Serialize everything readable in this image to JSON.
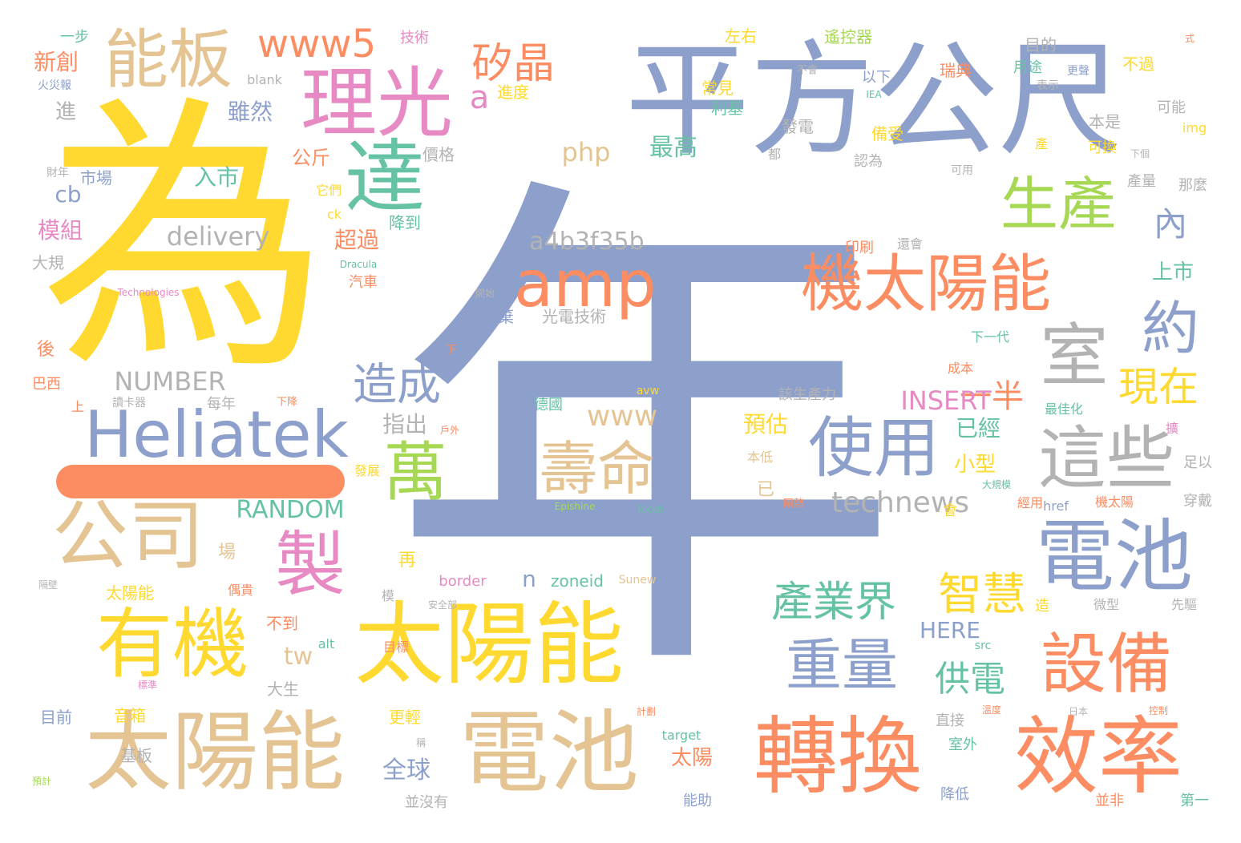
{
  "colors": {
    "blue": "#8DA0CB",
    "yellow": "#FFD92F",
    "orange": "#FC8D62",
    "pink": "#E78AC3",
    "green": "#A6D854",
    "teal": "#66C2A5",
    "tan": "#E5C494",
    "gray": "#B3B3B3"
  },
  "words": [
    {
      "text": "年",
      "color": "blue"
    },
    {
      "text": "為",
      "color": "yellow"
    },
    {
      "text": "平方公尺",
      "color": "blue"
    },
    {
      "text": "理光",
      "color": "pink"
    },
    {
      "text": "能板",
      "color": "tan"
    },
    {
      "text": "www5",
      "color": "orange"
    },
    {
      "text": "矽晶",
      "color": "orange"
    },
    {
      "text": "a",
      "color": "pink"
    },
    {
      "text": "達",
      "color": "teal"
    },
    {
      "text": "amp",
      "color": "orange"
    },
    {
      "text": "生產",
      "color": "green"
    },
    {
      "text": "內",
      "color": "blue"
    },
    {
      "text": "機太陽能",
      "color": "orange"
    },
    {
      "text": "室",
      "color": "gray"
    },
    {
      "text": "約",
      "color": "blue"
    },
    {
      "text": "Heliatek",
      "color": "blue"
    },
    {
      "text": "造成",
      "color": "blue"
    },
    {
      "text": "一半",
      "color": "orange"
    },
    {
      "text": "現在",
      "color": "yellow"
    },
    {
      "text": "壽命",
      "color": "tan"
    },
    {
      "text": "使用",
      "color": "blue"
    },
    {
      "text": "這些",
      "color": "gray"
    },
    {
      "text": "萬",
      "color": "green"
    },
    {
      "text": "公司",
      "color": "tan"
    },
    {
      "text": "製",
      "color": "pink"
    },
    {
      "text": "電池",
      "color": "blue"
    },
    {
      "text": "有機",
      "color": "yellow"
    },
    {
      "text": "太陽能",
      "color": "yellow"
    },
    {
      "text": "產業界",
      "color": "teal"
    },
    {
      "text": "智慧",
      "color": "yellow"
    },
    {
      "text": "重量",
      "color": "blue"
    },
    {
      "text": "設備",
      "color": "orange"
    },
    {
      "text": "太陽能",
      "color": "tan"
    },
    {
      "text": "電池",
      "color": "tan"
    },
    {
      "text": "轉換",
      "color": "orange"
    },
    {
      "text": "效率",
      "color": "orange"
    },
    {
      "text": "供電",
      "color": "teal"
    },
    {
      "text": "a4b3f35b",
      "color": "gray"
    },
    {
      "text": "delivery",
      "color": "gray"
    },
    {
      "text": "NUMBER",
      "color": "gray"
    },
    {
      "text": "technews",
      "color": "gray"
    },
    {
      "text": "RANDOM",
      "color": "teal"
    },
    {
      "text": "INSERT",
      "color": "pink"
    },
    {
      "text": "www",
      "color": "tan"
    },
    {
      "text": "php",
      "color": "tan"
    },
    {
      "text": "最高",
      "color": "teal"
    },
    {
      "text": "公斤",
      "color": "orange"
    },
    {
      "text": "入市",
      "color": "teal"
    },
    {
      "text": "雖然",
      "color": "blue"
    },
    {
      "text": "cb",
      "color": "blue"
    },
    {
      "text": "模組",
      "color": "pink"
    },
    {
      "text": "新創",
      "color": "orange"
    },
    {
      "text": "進",
      "color": "gray"
    },
    {
      "text": "已經",
      "color": "teal"
    },
    {
      "text": "預估",
      "color": "yellow"
    },
    {
      "text": "小型",
      "color": "yellow"
    },
    {
      "text": "指出",
      "color": "gray"
    },
    {
      "text": "超過",
      "color": "orange"
    },
    {
      "text": "上市",
      "color": "teal"
    },
    {
      "text": "全球",
      "color": "blue"
    },
    {
      "text": "太陽",
      "color": "orange"
    },
    {
      "text": "HERE",
      "color": "blue"
    },
    {
      "text": "tw",
      "color": "tan"
    },
    {
      "text": "n",
      "color": "blue"
    },
    {
      "text": "zoneid",
      "color": "teal"
    },
    {
      "text": "border",
      "color": "pink"
    },
    {
      "text": "大規",
      "color": "gray"
    },
    {
      "text": "市場",
      "color": "blue"
    },
    {
      "text": "價格",
      "color": "gray"
    },
    {
      "text": "目前",
      "color": "blue"
    },
    {
      "text": "音箱",
      "color": "yellow"
    },
    {
      "text": "基板",
      "color": "gray"
    },
    {
      "text": "更輕",
      "color": "yellow"
    },
    {
      "text": "大生",
      "color": "gray"
    },
    {
      "text": "不到",
      "color": "orange"
    },
    {
      "text": "太陽能",
      "color": "yellow"
    },
    {
      "text": "每年",
      "color": "gray"
    },
    {
      "text": "巴西",
      "color": "orange"
    },
    {
      "text": "後",
      "color": "orange"
    },
    {
      "text": "場",
      "color": "tan"
    },
    {
      "text": "再",
      "color": "yellow"
    },
    {
      "text": "降到",
      "color": "teal"
    },
    {
      "text": "汽車",
      "color": "orange"
    },
    {
      "text": "放棄",
      "color": "blue"
    },
    {
      "text": "光電技術",
      "color": "gray"
    },
    {
      "text": "該生產力",
      "color": "gray"
    },
    {
      "text": "德國",
      "color": "teal"
    },
    {
      "text": "一步",
      "color": "teal"
    },
    {
      "text": "技術",
      "color": "pink"
    },
    {
      "text": "左右",
      "color": "yellow"
    },
    {
      "text": "遙控器",
      "color": "green"
    },
    {
      "text": "目的",
      "color": "gray"
    },
    {
      "text": "瑞典",
      "color": "orange"
    },
    {
      "text": "不過",
      "color": "yellow"
    },
    {
      "text": "用途",
      "color": "teal"
    },
    {
      "text": "進度",
      "color": "yellow"
    },
    {
      "text": "常見",
      "color": "yellow"
    },
    {
      "text": "利基",
      "color": "teal"
    },
    {
      "text": "發電",
      "color": "gray"
    },
    {
      "text": "以下",
      "color": "blue"
    },
    {
      "text": "備受",
      "color": "yellow"
    },
    {
      "text": "認為",
      "color": "gray"
    },
    {
      "text": "本是",
      "color": "gray"
    },
    {
      "text": "可能",
      "color": "gray"
    },
    {
      "text": "可換",
      "color": "yellow"
    },
    {
      "text": "產量",
      "color": "gray"
    },
    {
      "text": "那麼",
      "color": "gray"
    },
    {
      "text": "印刷",
      "color": "orange"
    },
    {
      "text": "還會",
      "color": "gray"
    },
    {
      "text": "img",
      "color": "yellow"
    },
    {
      "text": "blank",
      "color": "gray"
    },
    {
      "text": "ck",
      "color": "yellow"
    },
    {
      "text": "href",
      "color": "blue"
    },
    {
      "text": "target",
      "color": "teal"
    },
    {
      "text": "alt",
      "color": "teal"
    },
    {
      "text": "src",
      "color": "teal"
    },
    {
      "text": "Sunew",
      "color": "tan"
    },
    {
      "text": "Epishine",
      "color": "green"
    },
    {
      "text": "Ricoh",
      "color": "teal"
    },
    {
      "text": "Dracula",
      "color": "teal"
    },
    {
      "text": "Technologies",
      "color": "pink"
    },
    {
      "text": "IEA",
      "color": "teal"
    },
    {
      "text": "avw",
      "color": "yellow"
    },
    {
      "text": "火災報",
      "color": "blue"
    },
    {
      "text": "財年",
      "color": "gray"
    },
    {
      "text": "讀卡器",
      "color": "gray"
    },
    {
      "text": "目標",
      "color": "orange"
    },
    {
      "text": "安全部",
      "color": "gray"
    },
    {
      "text": "成本",
      "color": "orange"
    },
    {
      "text": "下一代",
      "color": "teal"
    },
    {
      "text": "最佳化",
      "color": "teal"
    },
    {
      "text": "本低",
      "color": "tan"
    },
    {
      "text": "經用",
      "color": "orange"
    },
    {
      "text": "機太陽",
      "color": "orange"
    },
    {
      "text": "大規模",
      "color": "teal"
    },
    {
      "text": "微型",
      "color": "gray"
    },
    {
      "text": "先驅",
      "color": "gray"
    },
    {
      "text": "直接",
      "color": "gray"
    },
    {
      "text": "室外",
      "color": "teal"
    },
    {
      "text": "降低",
      "color": "blue"
    },
    {
      "text": "並非",
      "color": "orange"
    },
    {
      "text": "第一",
      "color": "teal"
    },
    {
      "text": "能助",
      "color": "blue"
    },
    {
      "text": "並沒有",
      "color": "gray"
    },
    {
      "text": "足以",
      "color": "gray"
    },
    {
      "text": "穿戴",
      "color": "gray"
    },
    {
      "text": "造",
      "color": "yellow"
    },
    {
      "text": "下降",
      "color": "orange"
    },
    {
      "text": "戶外",
      "color": "orange"
    },
    {
      "text": "發展",
      "color": "yellow"
    },
    {
      "text": "隔熱",
      "color": "orange"
    },
    {
      "text": "都",
      "color": "gray"
    },
    {
      "text": "下個",
      "color": "gray"
    },
    {
      "text": "可用",
      "color": "gray"
    },
    {
      "text": "不會",
      "color": "gray"
    },
    {
      "text": "更聲",
      "color": "blue"
    },
    {
      "text": "表示",
      "color": "gray"
    },
    {
      "text": "式",
      "color": "orange"
    },
    {
      "text": "已",
      "color": "tan"
    },
    {
      "text": "會",
      "color": "yellow"
    },
    {
      "text": "上",
      "color": "orange"
    },
    {
      "text": "擴",
      "color": "pink"
    },
    {
      "text": "模",
      "color": "gray"
    },
    {
      "text": "下",
      "color": "orange"
    },
    {
      "text": "產",
      "color": "yellow"
    },
    {
      "text": "它們",
      "color": "yellow"
    },
    {
      "text": "開始",
      "color": "gray"
    },
    {
      "text": "計劃",
      "color": "orange"
    },
    {
      "text": "日本",
      "color": "gray"
    },
    {
      "text": "控制",
      "color": "orange"
    },
    {
      "text": "溫度",
      "color": "orange"
    },
    {
      "text": "隔壁",
      "color": "gray"
    },
    {
      "text": "偶貴",
      "color": "orange"
    },
    {
      "text": "標準",
      "color": "pink"
    },
    {
      "text": "預計",
      "color": "green"
    },
    {
      "text": "稱",
      "color": "gray"
    }
  ]
}
